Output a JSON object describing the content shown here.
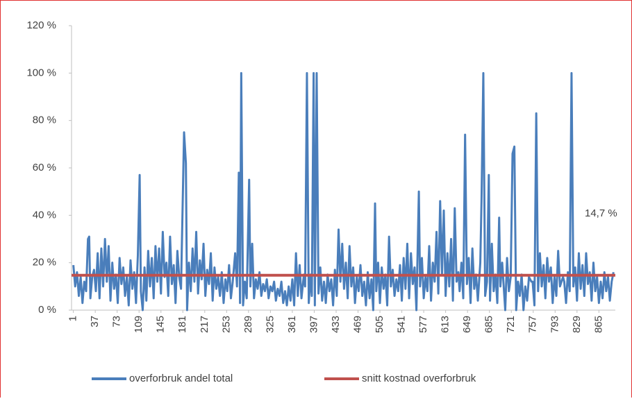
{
  "chart_data": {
    "type": "line",
    "ylim": [
      0,
      120
    ],
    "yticks": [
      {
        "value": 0,
        "label": "0 %"
      },
      {
        "value": 20,
        "label": "20 %"
      },
      {
        "value": 40,
        "label": "40 %"
      },
      {
        "value": 60,
        "label": "60 %"
      },
      {
        "value": 80,
        "label": "80 %"
      },
      {
        "value": 100,
        "label": "100 %"
      },
      {
        "value": 120,
        "label": "120 %"
      }
    ],
    "xlim": [
      -2,
      892
    ],
    "xticks": [
      1,
      37,
      73,
      109,
      145,
      181,
      217,
      253,
      289,
      325,
      361,
      397,
      433,
      469,
      505,
      541,
      577,
      613,
      649,
      685,
      721,
      757,
      793,
      829,
      865
    ],
    "legend": "bottom",
    "annotation": {
      "text": "14,7 %",
      "value": 14.7
    },
    "series": [
      {
        "name": "overforbruk andel total",
        "color": "#4a7ebb",
        "x": [
          1,
          4,
          7,
          10,
          13,
          16,
          19,
          22,
          25,
          27,
          29,
          32,
          35,
          38,
          41,
          44,
          47,
          50,
          53,
          56,
          59,
          62,
          65,
          68,
          71,
          74,
          77,
          80,
          83,
          86,
          89,
          92,
          95,
          98,
          101,
          104,
          107,
          110,
          112,
          115,
          118,
          121,
          124,
          127,
          130,
          133,
          136,
          139,
          142,
          145,
          148,
          151,
          154,
          157,
          160,
          163,
          166,
          169,
          172,
          175,
          178,
          183,
          186,
          188,
          191,
          194,
          197,
          200,
          203,
          206,
          209,
          212,
          215,
          218,
          221,
          224,
          227,
          230,
          233,
          236,
          239,
          242,
          245,
          248,
          251,
          254,
          257,
          260,
          263,
          267,
          270,
          273,
          275,
          277,
          280,
          283,
          286,
          290,
          292,
          295,
          298,
          301,
          304,
          307,
          310,
          313,
          316,
          319,
          322,
          325,
          328,
          331,
          334,
          337,
          340,
          343,
          346,
          349,
          352,
          355,
          358,
          361,
          364,
          367,
          370,
          373,
          376,
          380,
          382,
          385,
          388,
          391,
          393,
          396,
          398,
          401,
          404,
          407,
          410,
          413,
          416,
          419,
          422,
          425,
          428,
          431,
          434,
          437,
          440,
          443,
          446,
          449,
          452,
          455,
          458,
          461,
          464,
          467,
          470,
          473,
          476,
          479,
          482,
          485,
          488,
          491,
          494,
          497,
          499,
          502,
          505,
          508,
          511,
          514,
          517,
          520,
          523,
          526,
          529,
          532,
          535,
          538,
          541,
          544,
          547,
          550,
          553,
          556,
          559,
          562,
          565,
          569,
          571,
          574,
          577,
          580,
          583,
          586,
          589,
          592,
          595,
          598,
          601,
          604,
          607,
          610,
          613,
          616,
          619,
          622,
          625,
          628,
          631,
          634,
          636,
          639,
          642,
          645,
          648,
          651,
          654,
          657,
          660,
          663,
          666,
          670,
          672,
          675,
          678,
          681,
          684,
          686,
          689,
          692,
          695,
          698,
          701,
          703,
          706,
          708,
          711,
          714,
          717,
          720,
          723,
          726,
          729,
          732,
          735,
          738,
          741,
          744,
          747,
          750,
          754,
          756,
          759,
          762,
          765,
          768,
          771,
          774,
          777,
          780,
          783,
          786,
          789,
          792,
          795,
          798,
          801,
          806,
          808,
          811,
          814,
          817,
          820,
          823,
          826,
          829,
          832,
          835,
          838,
          841,
          844,
          847,
          850,
          853,
          856,
          859,
          862,
          865,
          868,
          871,
          874,
          877,
          880,
          883,
          886,
          889
        ],
        "values": [
          19,
          10,
          16,
          6,
          14,
          3,
          12,
          8,
          30,
          31,
          5,
          14,
          17,
          8,
          24,
          5,
          26,
          10,
          30,
          12,
          27,
          4,
          20,
          9,
          15,
          3,
          22,
          11,
          18,
          6,
          14,
          2,
          21,
          9,
          16,
          3,
          23,
          57,
          8,
          0,
          18,
          4,
          25,
          10,
          22,
          5,
          27,
          12,
          26,
          7,
          33,
          14,
          20,
          6,
          31,
          11,
          19,
          3,
          25,
          14,
          9,
          75,
          62,
          0,
          20,
          8,
          26,
          12,
          33,
          7,
          21,
          13,
          28,
          6,
          17,
          11,
          24,
          4,
          18,
          9,
          14,
          6,
          16,
          3,
          13,
          8,
          19,
          5,
          12,
          24,
          10,
          58,
          3,
          100,
          2,
          12,
          5,
          55,
          10,
          28,
          5,
          13,
          9,
          16,
          6,
          11,
          8,
          13,
          5,
          10,
          8,
          12,
          4,
          9,
          6,
          12,
          3,
          8,
          2,
          10,
          4,
          13,
          2,
          24,
          6,
          19,
          5,
          15,
          10,
          100,
          3,
          15,
          6,
          100,
          2,
          100,
          7,
          18,
          4,
          12,
          3,
          15,
          8,
          13,
          2,
          17,
          6,
          34,
          12,
          28,
          9,
          20,
          5,
          27,
          10,
          18,
          3,
          14,
          8,
          19,
          6,
          12,
          2,
          16,
          5,
          13,
          0,
          45,
          8,
          20,
          3,
          18,
          9,
          15,
          2,
          31,
          10,
          17,
          6,
          13,
          8,
          19,
          4,
          22,
          9,
          28,
          5,
          24,
          11,
          18,
          0,
          50,
          10,
          22,
          5,
          14,
          8,
          27,
          4,
          20,
          12,
          33,
          7,
          46,
          15,
          42,
          6,
          24,
          10,
          30,
          4,
          43,
          12,
          16,
          8,
          20,
          5,
          74,
          11,
          22,
          3,
          26,
          9,
          15,
          4,
          20,
          46,
          100,
          6,
          12,
          57,
          4,
          28,
          8,
          15,
          3,
          39,
          10,
          20,
          12,
          0,
          22,
          8,
          14,
          66,
          69,
          0,
          12,
          6,
          15,
          0,
          10,
          4,
          14,
          12,
          12,
          2,
          83,
          8,
          24,
          10,
          19,
          5,
          22,
          12,
          18,
          3,
          14,
          6,
          25,
          10,
          14,
          12,
          3,
          16,
          8,
          100,
          10,
          18,
          4,
          24,
          9,
          19,
          6,
          24,
          11,
          16,
          4,
          20,
          8,
          14,
          3,
          12,
          5,
          16,
          8,
          14,
          4,
          12,
          16
        ]
      },
      {
        "name": "snitt kostnad overforbruk",
        "color": "#c0504d",
        "x": [
          -2,
          892
        ],
        "values": [
          14.7,
          14.7
        ]
      }
    ]
  }
}
